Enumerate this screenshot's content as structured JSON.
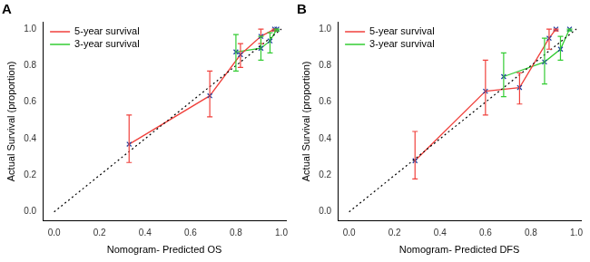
{
  "chart_data": [
    {
      "type": "line",
      "title": "A",
      "x_label": "Nomogram- Predicted OS",
      "y_label": "Actual Survival (proportion)",
      "xlim": [
        -0.05,
        1.02
      ],
      "ylim": [
        -0.05,
        1.04
      ],
      "xticks": [
        {
          "value": 0,
          "label": "0.0"
        },
        0.2,
        0.4,
        0.6,
        0.8,
        {
          "value": 1,
          "label": "1.0"
        }
      ],
      "yticks": [
        {
          "value": 0,
          "label": "0.0"
        },
        0.2,
        0.4,
        0.6,
        0.8,
        {
          "value": 1,
          "label": "1.0"
        }
      ],
      "grid": false,
      "legend": "upper left",
      "reference_line": {
        "x": [
          0,
          1
        ],
        "values": [
          0,
          1
        ],
        "color": "#000000",
        "line_style": "dotted"
      },
      "series": [
        {
          "name": "5-year survival",
          "color": "#f0413c",
          "marker": "cross",
          "x": [
            0.33,
            0.685,
            0.82,
            0.91,
            0.97
          ],
          "values": [
            0.37,
            0.635,
            0.86,
            0.96,
            1.0
          ],
          "lower": [
            0.27,
            0.52,
            0.79,
            0.92,
            0.99
          ],
          "upper": [
            0.53,
            0.77,
            0.92,
            1.0,
            1.0
          ]
        },
        {
          "name": "3-year survival",
          "color": "#33cc33",
          "marker": "cross",
          "x": [
            0.8,
            0.91,
            0.95,
            0.98
          ],
          "values": [
            0.875,
            0.895,
            0.935,
            1.0
          ],
          "lower": [
            0.77,
            0.83,
            0.87,
            0.99
          ],
          "upper": [
            0.97,
            0.96,
            0.98,
            1.0
          ]
        }
      ]
    },
    {
      "type": "line",
      "title": "B",
      "x_label": "Nomogram- Predicted DFS",
      "y_label": "Actual Survival (proportion)",
      "xlim": [
        -0.05,
        1.02
      ],
      "ylim": [
        -0.05,
        1.04
      ],
      "xticks": [
        {
          "value": 0,
          "label": "0.0"
        },
        0.2,
        0.4,
        0.6,
        0.8,
        {
          "value": 1,
          "label": "1.0"
        }
      ],
      "yticks": [
        {
          "value": 0,
          "label": "0.0"
        },
        0.2,
        0.4,
        0.6,
        0.8,
        {
          "value": 1,
          "label": "1.0"
        }
      ],
      "grid": false,
      "legend": "upper left",
      "reference_line": {
        "x": [
          0,
          1
        ],
        "values": [
          0,
          1
        ],
        "color": "#000000",
        "line_style": "dotted"
      },
      "series": [
        {
          "name": "5-year survival",
          "color": "#f0413c",
          "marker": "cross",
          "x": [
            0.29,
            0.6,
            0.75,
            0.88,
            0.91
          ],
          "values": [
            0.28,
            0.66,
            0.68,
            0.95,
            1.0
          ],
          "lower": [
            0.18,
            0.53,
            0.59,
            0.89,
            0.99
          ],
          "upper": [
            0.44,
            0.83,
            0.76,
            1.0,
            1.0
          ]
        },
        {
          "name": "3-year survival",
          "color": "#33cc33",
          "marker": "cross",
          "x": [
            0.68,
            0.86,
            0.93,
            0.97
          ],
          "values": [
            0.74,
            0.82,
            0.89,
            1.0
          ],
          "lower": [
            0.63,
            0.7,
            0.83,
            0.99
          ],
          "upper": [
            0.87,
            0.95,
            0.96,
            1.0
          ]
        }
      ]
    }
  ]
}
